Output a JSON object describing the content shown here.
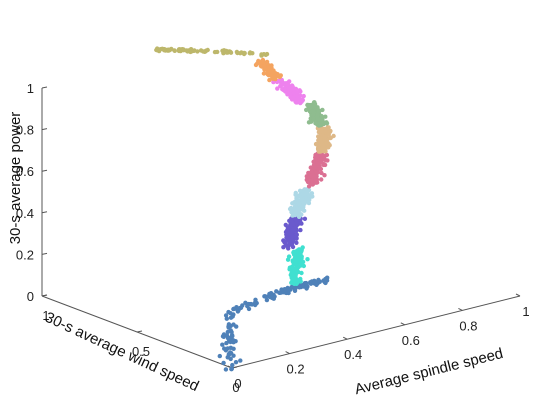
{
  "chart_data": {
    "type": "scatter",
    "projection": "3d",
    "grid": false,
    "legend": "none",
    "x_axis": {
      "label": "Average spindle speed",
      "range": [
        0,
        1
      ],
      "ticks": [
        {
          "value": 0,
          "label": "0"
        },
        {
          "value": 0.2,
          "label": "0.2"
        },
        {
          "value": 0.4,
          "label": "0.4"
        },
        {
          "value": 0.6,
          "label": "0.6"
        },
        {
          "value": 0.8,
          "label": "0.8"
        },
        {
          "value": 1,
          "label": "1"
        }
      ]
    },
    "y_axis": {
      "label": "30-s average wind speed",
      "range": [
        0,
        1
      ],
      "ticks": [
        {
          "value": 0,
          "label": "0"
        },
        {
          "value": 0.5,
          "label": "0.5"
        },
        {
          "value": 1,
          "label": "1"
        }
      ]
    },
    "z_axis": {
      "label": "30-s average power",
      "range": [
        0,
        1
      ],
      "ticks": [
        {
          "value": 0,
          "label": "0"
        },
        {
          "value": 0.2,
          "label": "0.2"
        },
        {
          "value": 0.4,
          "label": "0.4"
        },
        {
          "value": 0.6,
          "label": "0.6"
        },
        {
          "value": 0.8,
          "label": "0.8"
        },
        {
          "value": 1,
          "label": "1"
        }
      ]
    },
    "clusters": [
      {
        "color": "#4f81b8",
        "count": 160,
        "path": [
          [
            0.0,
            0.0,
            0.0
          ],
          [
            0.12,
            0.2,
            0.02
          ],
          [
            0.25,
            0.38,
            0.05
          ],
          [
            0.42,
            0.42,
            0.06
          ],
          [
            0.5,
            0.42,
            0.07
          ],
          [
            0.6,
            0.4,
            0.08
          ]
        ]
      },
      {
        "color": "#40e0d0",
        "count": 110,
        "path": [
          [
            0.48,
            0.4,
            0.1
          ],
          [
            0.5,
            0.42,
            0.17
          ],
          [
            0.52,
            0.44,
            0.24
          ]
        ]
      },
      {
        "color": "#6a5acd",
        "count": 110,
        "path": [
          [
            0.48,
            0.44,
            0.26
          ],
          [
            0.51,
            0.46,
            0.32
          ],
          [
            0.54,
            0.48,
            0.37
          ]
        ]
      },
      {
        "color": "#add8e6",
        "count": 110,
        "path": [
          [
            0.54,
            0.48,
            0.38
          ],
          [
            0.57,
            0.5,
            0.42
          ],
          [
            0.6,
            0.52,
            0.47
          ]
        ]
      },
      {
        "color": "#db7093",
        "count": 120,
        "path": [
          [
            0.62,
            0.52,
            0.49
          ],
          [
            0.65,
            0.54,
            0.55
          ],
          [
            0.68,
            0.56,
            0.6
          ]
        ]
      },
      {
        "color": "#deb887",
        "count": 110,
        "path": [
          [
            0.68,
            0.56,
            0.61
          ],
          [
            0.7,
            0.58,
            0.66
          ],
          [
            0.72,
            0.6,
            0.7
          ]
        ]
      },
      {
        "color": "#8fbc8f",
        "count": 110,
        "path": [
          [
            0.7,
            0.6,
            0.72
          ],
          [
            0.7,
            0.62,
            0.76
          ],
          [
            0.7,
            0.64,
            0.81
          ]
        ]
      },
      {
        "color": "#ee82ee",
        "count": 110,
        "path": [
          [
            0.66,
            0.64,
            0.83
          ],
          [
            0.64,
            0.66,
            0.88
          ],
          [
            0.62,
            0.68,
            0.93
          ]
        ]
      },
      {
        "color": "#f4a460",
        "count": 90,
        "path": [
          [
            0.6,
            0.68,
            0.95
          ],
          [
            0.59,
            0.7,
            0.99
          ],
          [
            0.58,
            0.72,
            1.02
          ]
        ]
      },
      {
        "color": "#bdb76b",
        "count": 80,
        "path": [
          [
            0.6,
            0.72,
            1.05
          ],
          [
            0.48,
            0.76,
            1.09
          ],
          [
            0.35,
            0.8,
            1.13
          ],
          [
            0.28,
            0.82,
            1.15
          ]
        ]
      }
    ]
  }
}
